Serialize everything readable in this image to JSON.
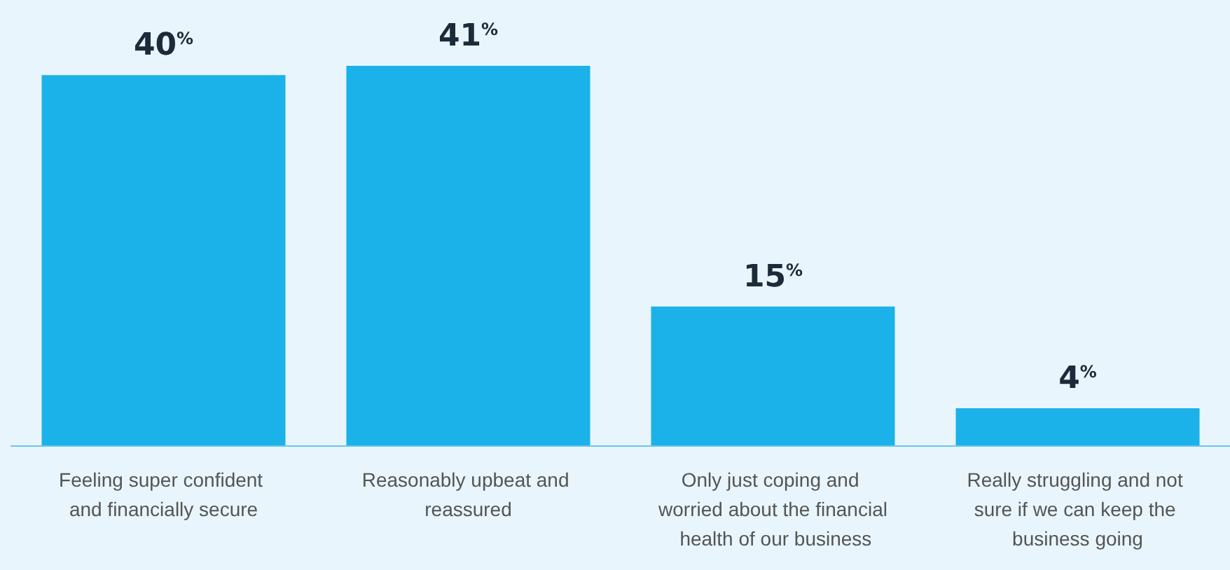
{
  "chart_data": {
    "type": "bar",
    "categories": [
      "Feeling super confident and financially secure",
      "Reasonably upbeat and reassured",
      "Only just coping and worried about the financial health of our business",
      "Really struggling and not sure if we can keep the business going"
    ],
    "values": [
      40,
      41,
      15,
      4
    ],
    "color": "#1ab2e8",
    "value_labels": [
      "40%",
      "41%",
      "15%",
      "4%"
    ]
  }
}
